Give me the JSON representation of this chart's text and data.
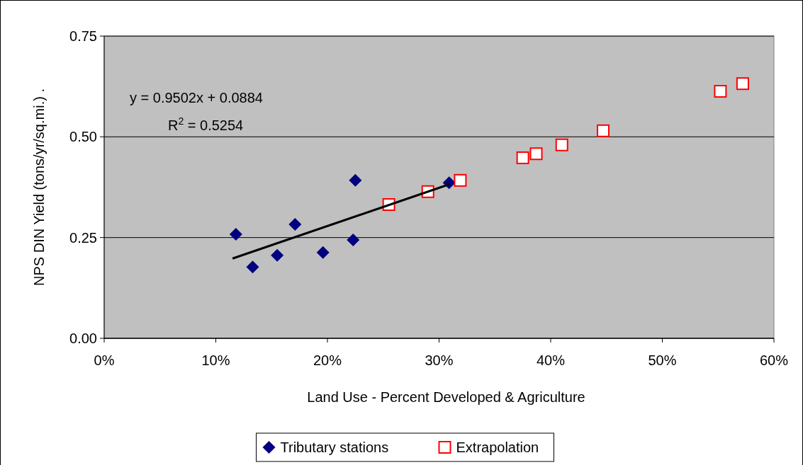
{
  "chart_data": {
    "type": "scatter",
    "xlabel": "Land Use - Percent Developed & Agriculture",
    "ylabel": "NPS DIN Yield (tons/yr/sq.mi.)  .",
    "xlim": [
      0,
      0.6
    ],
    "xticks": [
      {
        "value": 0,
        "label": "0%"
      },
      {
        "value": 0.1,
        "label": "10%"
      },
      {
        "value": 0.2,
        "label": "20%"
      },
      {
        "value": 0.3,
        "label": "30%"
      },
      {
        "value": 0.4,
        "label": "40%"
      },
      {
        "value": 0.5,
        "label": "50%"
      },
      {
        "value": 0.6,
        "label": "60%"
      }
    ],
    "ylim": [
      0,
      0.75
    ],
    "yticks": [
      {
        "value": 0,
        "label": "0.00"
      },
      {
        "value": 0.25,
        "label": "0.25"
      },
      {
        "value": 0.5,
        "label": "0.50"
      },
      {
        "value": 0.75,
        "label": "0.75"
      }
    ],
    "grid": "y",
    "legend": "bottom",
    "series": [
      {
        "name": "Tributary stations",
        "marker": "diamond",
        "color": "#000080",
        "x": [
          0.118,
          0.133,
          0.155,
          0.171,
          0.196,
          0.223,
          0.225,
          0.309
        ],
        "values": [
          0.258,
          0.177,
          0.206,
          0.283,
          0.213,
          0.244,
          0.392,
          0.386
        ]
      },
      {
        "name": "Extrapolation",
        "marker": "square",
        "color": "#ff0000",
        "x": [
          0.255,
          0.29,
          0.319,
          0.375,
          0.387,
          0.41,
          0.447,
          0.552,
          0.572
        ],
        "values": [
          0.332,
          0.364,
          0.392,
          0.448,
          0.458,
          0.48,
          0.515,
          0.613,
          0.632
        ]
      },
      {
        "type": "line",
        "marker": "none",
        "color": "#000000",
        "x": [
          0.115,
          0.309
        ],
        "values": [
          0.198,
          0.382
        ]
      }
    ],
    "annotations": [
      "y = 0.9502x + 0.0884",
      "R$^{2}$ = 0.5254"
    ]
  }
}
